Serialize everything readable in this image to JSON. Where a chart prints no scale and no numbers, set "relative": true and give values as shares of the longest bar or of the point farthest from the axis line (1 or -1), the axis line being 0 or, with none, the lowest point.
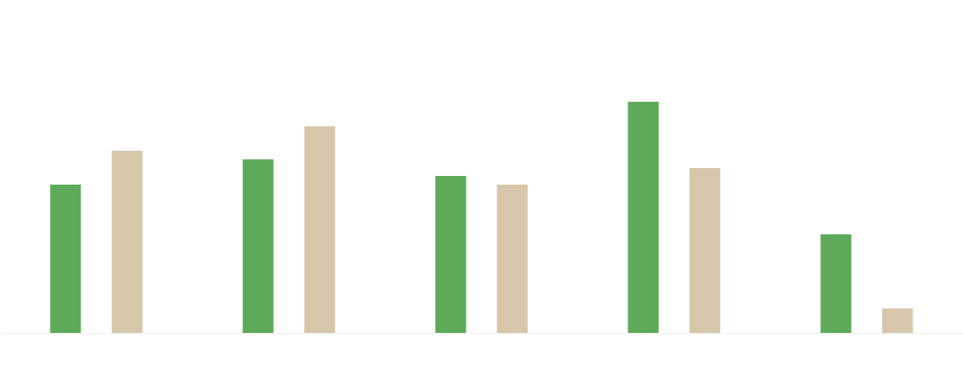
{
  "chart_data": {
    "type": "bar",
    "relative": true,
    "categories": [
      null,
      null,
      null,
      null,
      null
    ],
    "series": [
      {
        "color": "#5eaa5a",
        "values": [
          0.642,
          0.751,
          0.679,
          1,
          0.427
        ]
      },
      {
        "color": "#d6c7ab",
        "values": [
          0.788,
          0.894,
          0.642,
          0.713,
          0.106
        ]
      }
    ]
  }
}
